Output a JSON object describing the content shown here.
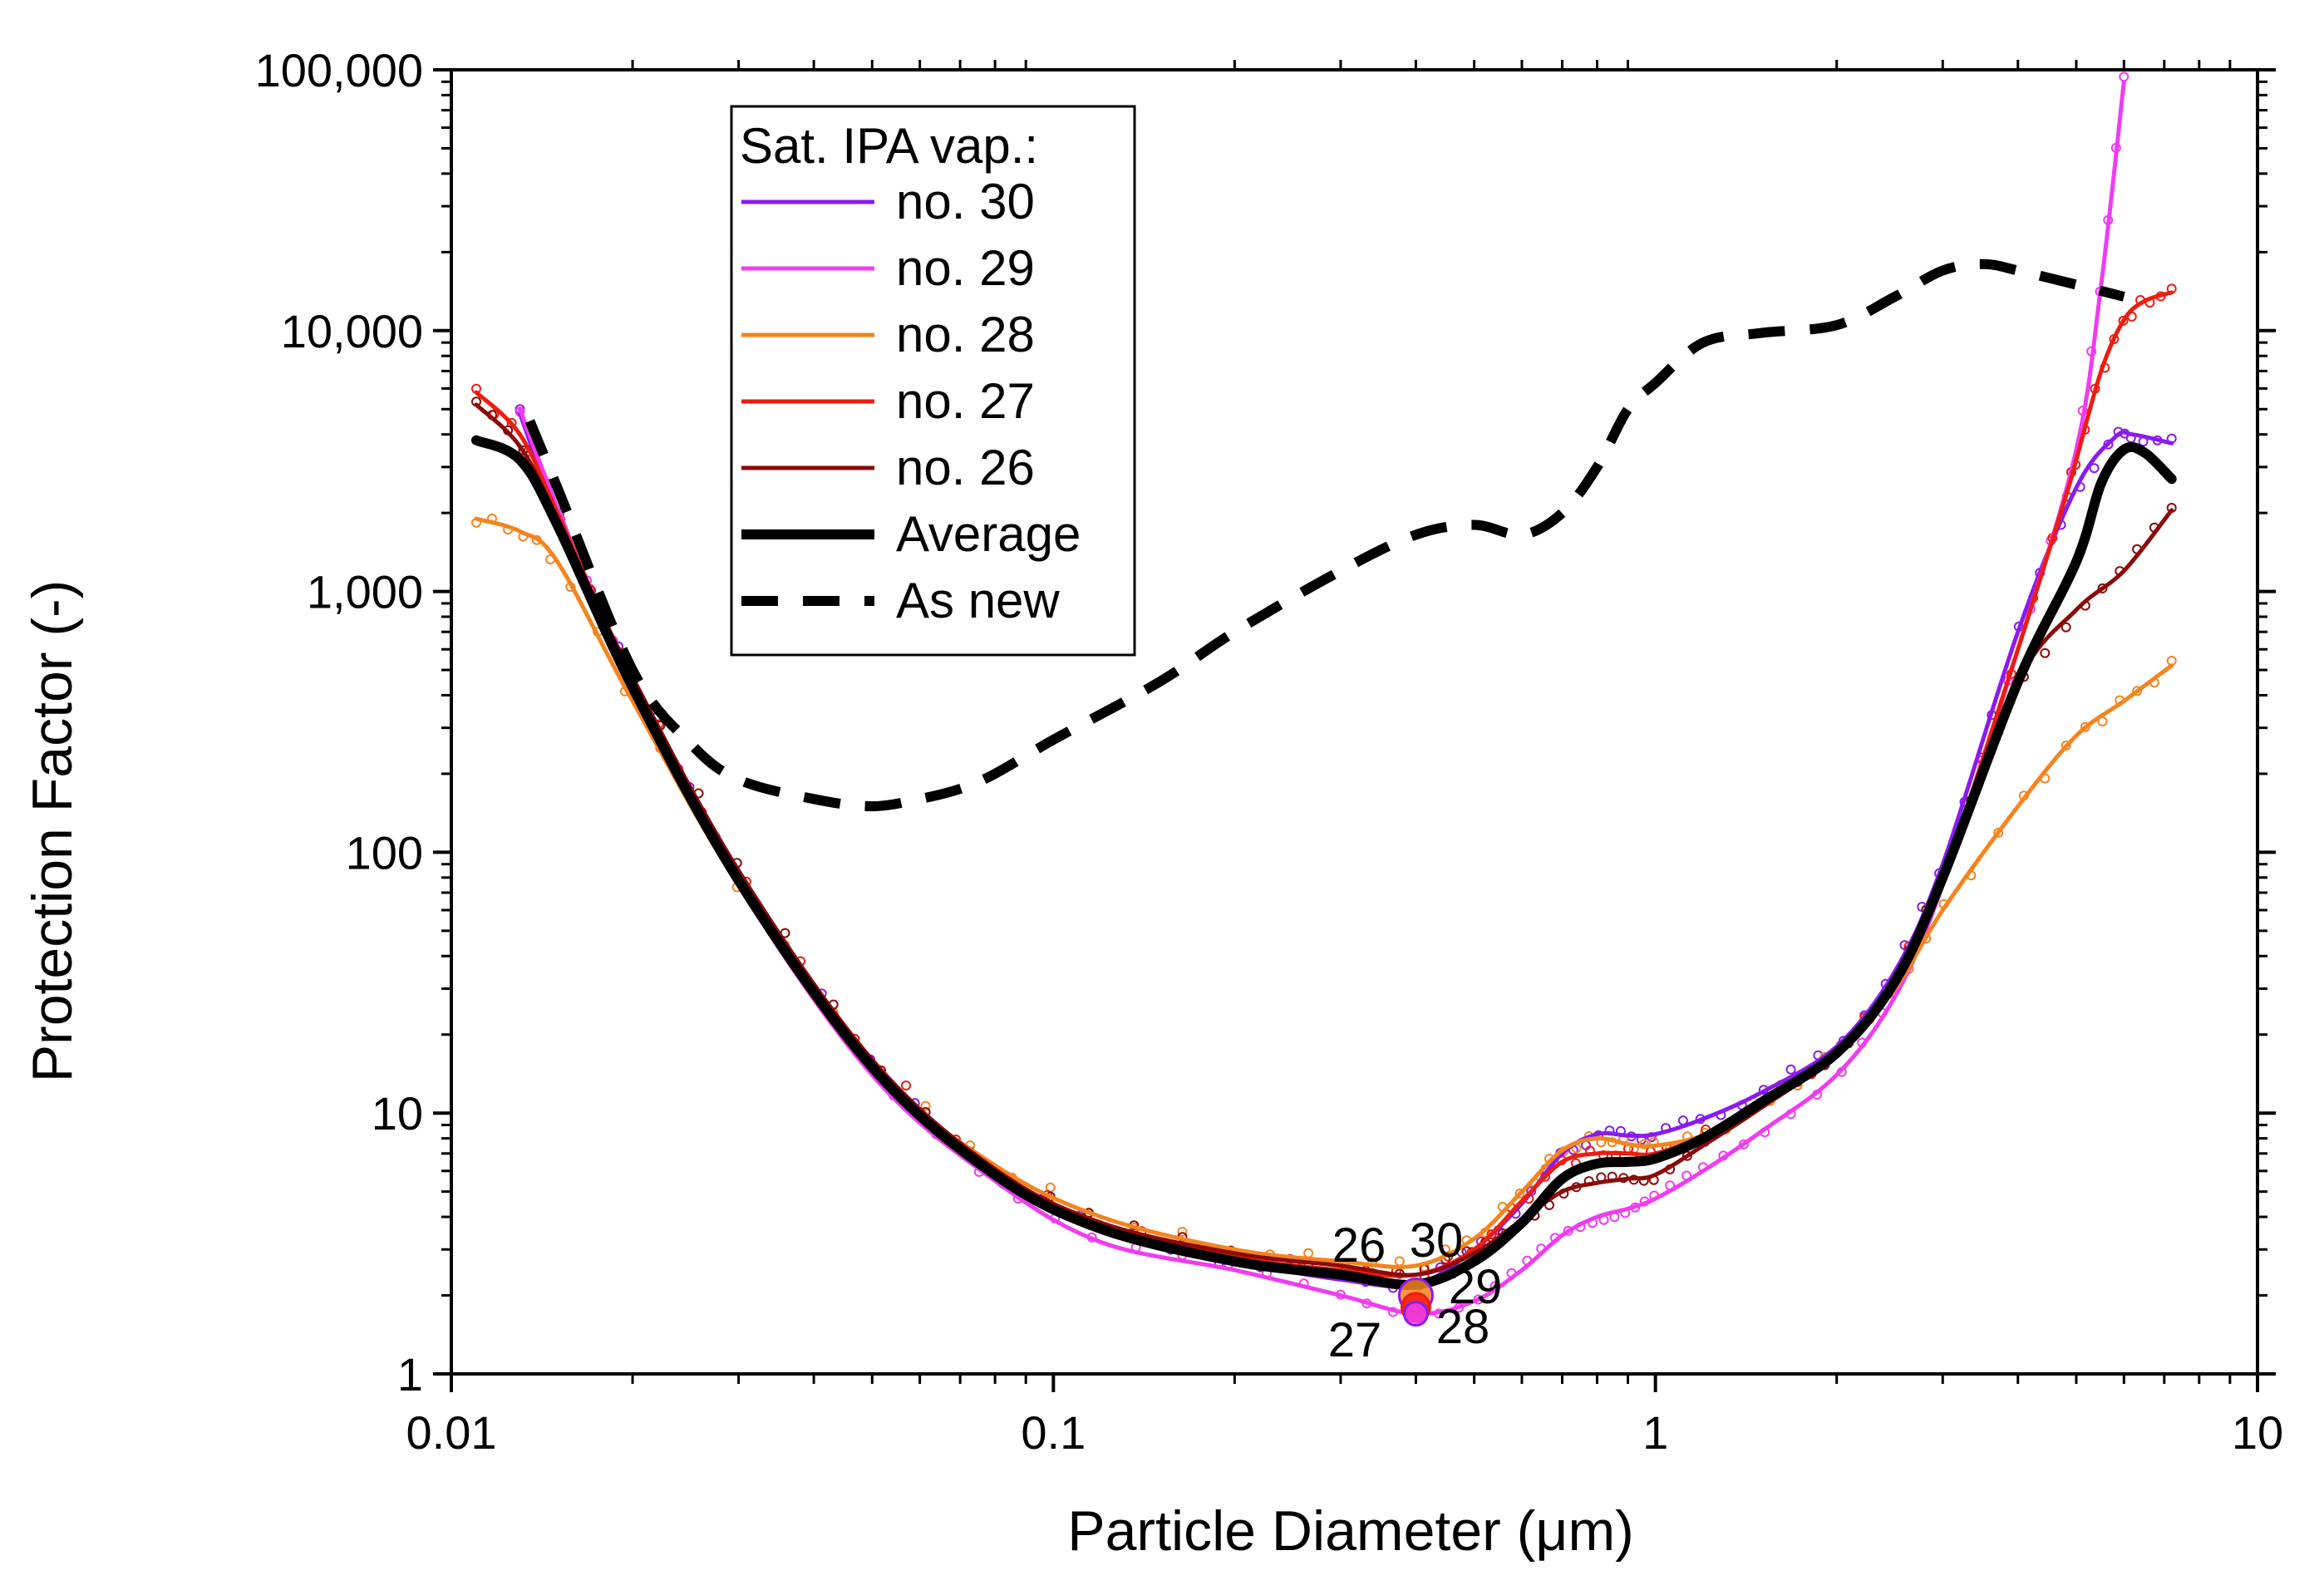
{
  "chart_data": {
    "type": "line",
    "title": "",
    "xlabel": "Particle Diameter (μm)",
    "ylabel": "Protection Factor (-)",
    "xscale": "log",
    "yscale": "log",
    "xlim": [
      0.01,
      10
    ],
    "ylim": [
      1,
      100000
    ],
    "grid": false,
    "legend_position": "top-left",
    "legend_title": "Sat. IPA vap.:",
    "x_tick_labels": [
      "0.01",
      "0.1",
      "1",
      "10"
    ],
    "y_tick_labels": [
      "1",
      "10",
      "100",
      "1,000",
      "10,000",
      "100,000"
    ],
    "series": [
      {
        "name": "no. 30",
        "color": "#8B1AF0",
        "width": 5,
        "dash": "solid",
        "x": [
          0.013,
          0.015,
          0.02,
          0.03,
          0.05,
          0.08,
          0.12,
          0.2,
          0.3,
          0.4,
          0.5,
          0.6,
          0.7,
          0.8,
          0.9,
          1.0,
          1.2,
          1.5,
          2.0,
          2.5,
          3.0,
          4.0,
          5.0,
          5.8,
          6.2,
          7.2
        ],
        "y": [
          4800,
          2000,
          450,
          80,
          15,
          5.8,
          3.5,
          2.7,
          2.3,
          2.2,
          3.0,
          4.5,
          7.0,
          8.3,
          8.2,
          8.3,
          9.5,
          12,
          18,
          35,
          90,
          700,
          2500,
          3900,
          4000,
          3700
        ]
      },
      {
        "name": "no. 29",
        "color": "#F03CF0",
        "width": 5,
        "dash": "solid",
        "x": [
          0.013,
          0.015,
          0.02,
          0.03,
          0.05,
          0.08,
          0.12,
          0.2,
          0.3,
          0.4,
          0.5,
          0.6,
          0.7,
          0.8,
          0.9,
          1.0,
          1.2,
          1.5,
          2.0,
          2.5,
          3.0,
          4.0,
          5.0,
          5.5,
          6.0
        ],
        "y": [
          5000,
          2100,
          430,
          75,
          14,
          5.5,
          3.2,
          2.5,
          2.0,
          1.7,
          1.9,
          2.5,
          3.4,
          4.0,
          4.3,
          4.7,
          6.0,
          8.5,
          14,
          28,
          75,
          600,
          3500,
          15000,
          90000
        ]
      },
      {
        "name": "no. 28",
        "color": "#F5841F",
        "width": 5,
        "dash": "solid",
        "x": [
          0.011,
          0.013,
          0.015,
          0.02,
          0.03,
          0.05,
          0.08,
          0.12,
          0.2,
          0.3,
          0.4,
          0.5,
          0.6,
          0.7,
          0.8,
          0.9,
          1.0,
          1.2,
          1.5,
          2.0,
          2.5,
          3.0,
          4.0,
          5.0,
          6.0,
          7.2
        ],
        "y": [
          1900,
          1700,
          1300,
          380,
          75,
          15,
          6.3,
          4.0,
          3.0,
          2.7,
          2.6,
          3.3,
          5.0,
          7.2,
          8.0,
          7.6,
          7.5,
          8.2,
          10.5,
          17,
          30,
          60,
          150,
          280,
          380,
          520
        ]
      },
      {
        "name": "no. 27",
        "color": "#EE1C10",
        "width": 5,
        "dash": "solid",
        "x": [
          0.011,
          0.013,
          0.015,
          0.02,
          0.03,
          0.05,
          0.08,
          0.12,
          0.2,
          0.3,
          0.4,
          0.5,
          0.6,
          0.7,
          0.8,
          0.9,
          1.0,
          1.2,
          1.5,
          2.0,
          2.5,
          3.0,
          4.0,
          4.8,
          5.0,
          5.5,
          6.0,
          6.5,
          7.2
        ],
        "y": [
          5800,
          4000,
          2000,
          460,
          82,
          16,
          6.0,
          3.7,
          2.8,
          2.5,
          2.4,
          3.0,
          4.6,
          6.5,
          7.0,
          7.0,
          7.0,
          8.2,
          11,
          17,
          32,
          80,
          600,
          2300,
          3200,
          7000,
          11000,
          13000,
          14000
        ]
      },
      {
        "name": "no. 26",
        "color": "#8B0A0A",
        "width": 5,
        "dash": "solid",
        "x": [
          0.011,
          0.013,
          0.015,
          0.02,
          0.03,
          0.05,
          0.08,
          0.12,
          0.2,
          0.3,
          0.4,
          0.5,
          0.6,
          0.7,
          0.8,
          0.9,
          1.0,
          1.2,
          1.5,
          2.0,
          2.5,
          3.0,
          4.0,
          5.0,
          6.0,
          7.2
        ],
        "y": [
          5200,
          3600,
          1900,
          470,
          85,
          16,
          6.1,
          3.8,
          2.9,
          2.6,
          2.4,
          2.9,
          3.9,
          5.0,
          5.4,
          5.6,
          5.8,
          7.5,
          10.5,
          17,
          32,
          80,
          450,
          850,
          1200,
          2050
        ]
      },
      {
        "name": "Average",
        "color": "#000000",
        "width": 12,
        "dash": "solid",
        "x": [
          0.011,
          0.013,
          0.015,
          0.02,
          0.03,
          0.05,
          0.08,
          0.12,
          0.2,
          0.3,
          0.4,
          0.5,
          0.6,
          0.7,
          0.8,
          0.9,
          1.0,
          1.2,
          1.5,
          2.0,
          2.5,
          3.0,
          4.0,
          5.0,
          5.5,
          6.0,
          6.5,
          7.2
        ],
        "y": [
          3800,
          3200,
          1800,
          430,
          78,
          15,
          5.8,
          3.6,
          2.7,
          2.4,
          2.2,
          2.7,
          3.8,
          5.6,
          6.4,
          6.5,
          6.7,
          8.0,
          11,
          17,
          32,
          80,
          450,
          1300,
          2600,
          3500,
          3400,
          2700
        ]
      },
      {
        "name": "As new",
        "color": "#000000",
        "width": 12,
        "dash": "dashed",
        "x": [
          0.0135,
          0.015,
          0.02,
          0.025,
          0.03,
          0.04,
          0.05,
          0.06,
          0.07,
          0.08,
          0.1,
          0.15,
          0.2,
          0.3,
          0.4,
          0.5,
          0.6,
          0.7,
          0.8,
          0.9,
          1.0,
          1.2,
          1.5,
          2.0,
          2.5,
          3.0,
          3.5,
          4.0,
          5.0,
          6.0
        ],
        "y": [
          4500,
          2500,
          500,
          260,
          190,
          160,
          150,
          160,
          175,
          200,
          270,
          450,
          700,
          1200,
          1650,
          1800,
          1650,
          2000,
          3000,
          5000,
          6300,
          9000,
          9800,
          10500,
          13500,
          17000,
          18000,
          17000,
          15000,
          13500
        ]
      }
    ],
    "raw_points_note": "open circle markers scatter around each series",
    "annotations": [
      "26",
      "30",
      "29",
      "27",
      "28"
    ],
    "annotation_point_x": 0.4,
    "annotation_point_y": [
      2.0,
      1.8,
      1.7
    ]
  }
}
